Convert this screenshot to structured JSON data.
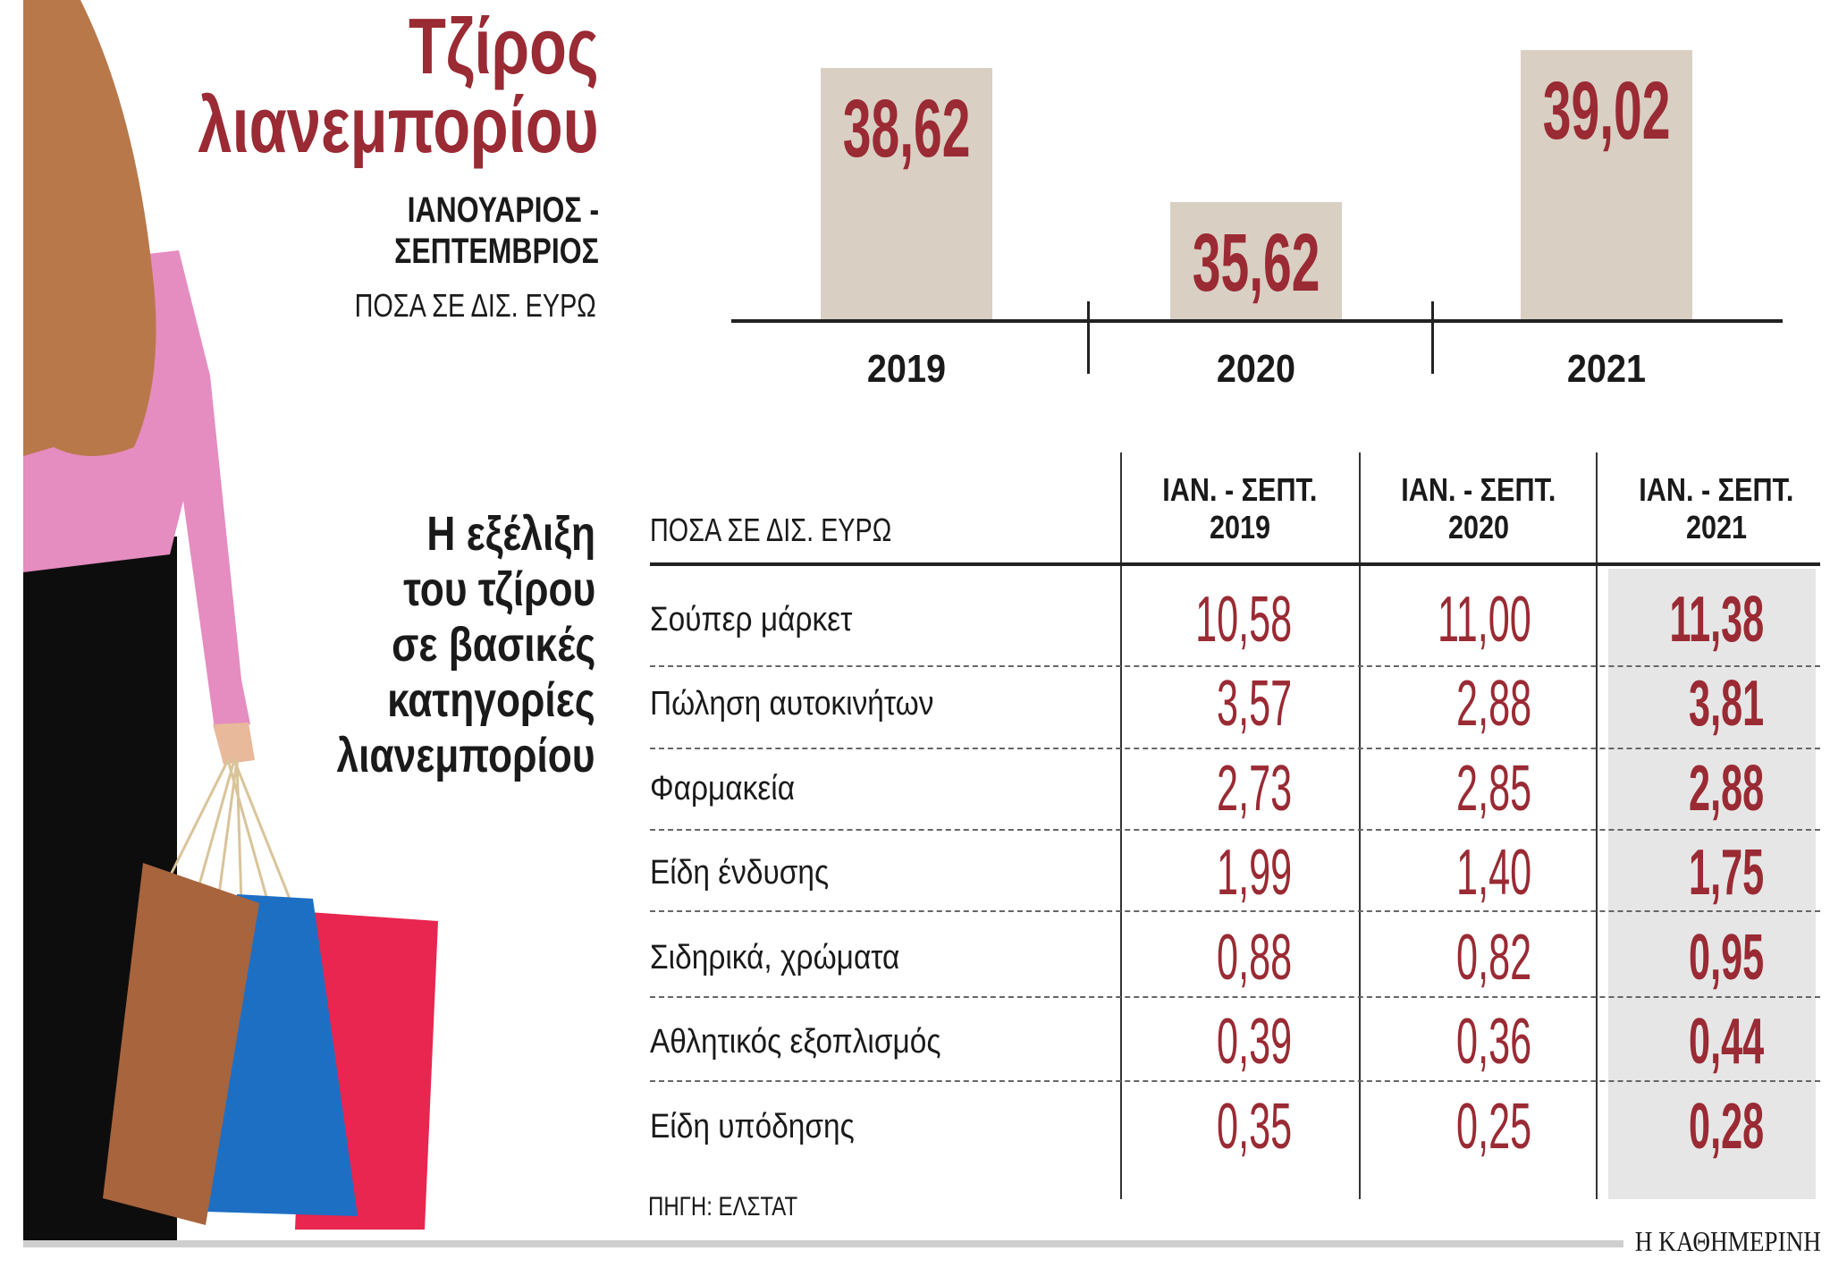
{
  "header": {
    "title_line1": "Τζίρος",
    "title_line2": "λιανεμπορίου",
    "period_line1": "ΙΑΝΟΥΑΡΙΟΣ -",
    "period_line2": "ΣΕΠΤΕΜΒΡΙΟΣ",
    "unit": "ΠΟΣΑ ΣΕ ΔΙΣ. ΕΥΡΩ"
  },
  "colors": {
    "accent": "#9a2a33",
    "bar": "#d9cfc3",
    "highlight_column": "#e6e6e6"
  },
  "chart_data": [
    {
      "type": "bar",
      "title": "Τζίρος λιανεμπορίου",
      "subtitle": "ΙΑΝΟΥΑΡΙΟΣ - ΣΕΠΤΕΜΒΡΙΟΣ",
      "ylabel": "ΠΟΣΑ ΣΕ ΔΙΣ. ΕΥΡΩ",
      "categories": [
        "2019",
        "2020",
        "2021"
      ],
      "values": [
        38.62,
        35.62,
        39.02
      ],
      "data_labels": [
        "38,62",
        "35,62",
        "39,02"
      ],
      "ylim": [
        33,
        39.4
      ],
      "grid": false
    },
    {
      "type": "table",
      "title": "Η εξέλιξη του τζίρου σε βασικές κατηγορίες λιανεμπορίου",
      "unit": "ΠΟΣΑ ΣΕ ΔΙΣ. ΕΥΡΩ",
      "columns": [
        {
          "line1": "ΙΑΝ. - ΣΕΠΤ.",
          "line2": "2019"
        },
        {
          "line1": "ΙΑΝ. - ΣΕΠΤ.",
          "line2": "2020"
        },
        {
          "line1": "ΙΑΝ. - ΣΕΠΤ.",
          "line2": "2021"
        }
      ],
      "rows": [
        {
          "label": "Σούπερ μάρκετ",
          "values": [
            "10,58",
            "11,00",
            "11,38"
          ]
        },
        {
          "label": "Πώληση αυτοκινήτων",
          "values": [
            "3,57",
            "2,88",
            "3,81"
          ]
        },
        {
          "label": "Φαρμακεία",
          "values": [
            "2,73",
            "2,85",
            "2,88"
          ]
        },
        {
          "label": "Είδη ένδυσης",
          "values": [
            "1,99",
            "1,40",
            "1,75"
          ]
        },
        {
          "label": "Σιδηρικά, χρώματα",
          "values": [
            "0,88",
            "0,82",
            "0,95"
          ]
        },
        {
          "label": "Αθλητικός εξοπλισμός",
          "values": [
            "0,39",
            "0,36",
            "0,44"
          ]
        },
        {
          "label": "Είδη υπόδησης",
          "values": [
            "0,35",
            "0,25",
            "0,28"
          ]
        }
      ]
    }
  ],
  "table_heading": [
    "Η εξέλιξη",
    "του τζίρου",
    "σε βασικές",
    "κατηγορίες",
    "λιανεμπορίου"
  ],
  "source": "ΠΗΓΗ: ΕΛΣΤΑΤ",
  "brand": "Η ΚΑΘΗΜΕΡΙΝΗ"
}
